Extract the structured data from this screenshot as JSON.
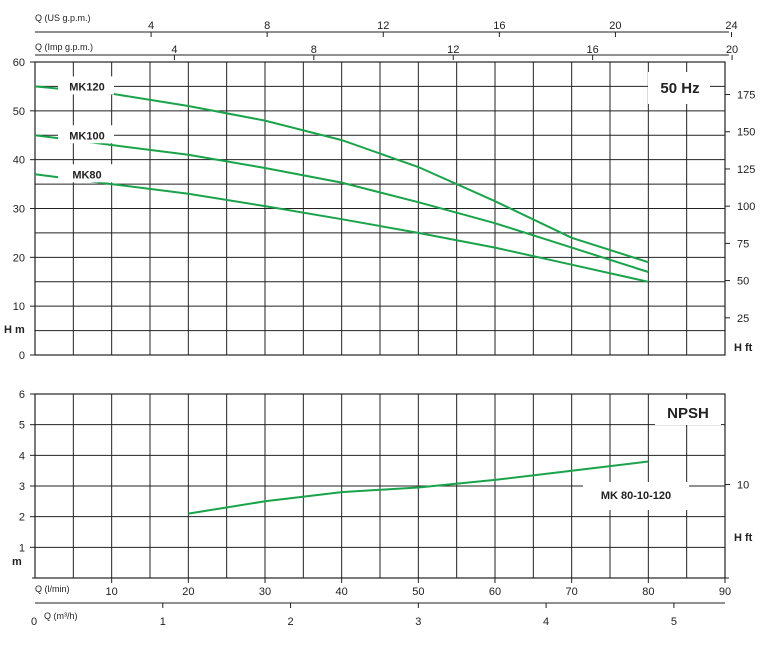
{
  "chart_data": [
    {
      "type": "line",
      "title": "50 Hz",
      "ylabel": "H m",
      "y2label": "H ft",
      "ylim": [
        0,
        60
      ],
      "y2ticks": [
        25,
        50,
        75,
        100,
        125,
        150,
        175
      ],
      "yticks": [
        0,
        10,
        20,
        30,
        40,
        50,
        60
      ],
      "top_axis_us_label": "Q (US g.p.m.)",
      "top_axis_us_ticks": [
        4,
        8,
        12,
        16,
        20,
        24
      ],
      "top_axis_imp_label": "Q (Imp g.p.m.)",
      "top_axis_imp_ticks": [
        4,
        8,
        12,
        16,
        20
      ],
      "series": [
        {
          "name": "MK120",
          "x": [
            0,
            10,
            20,
            30,
            40,
            50,
            60,
            70,
            80
          ],
          "y": [
            55,
            53.5,
            51,
            48,
            44,
            38.5,
            31.5,
            24,
            19
          ]
        },
        {
          "name": "MK100",
          "x": [
            0,
            10,
            20,
            30,
            40,
            50,
            60,
            70,
            80
          ],
          "y": [
            45,
            43,
            41,
            38.3,
            35.3,
            31.3,
            27,
            22,
            17
          ]
        },
        {
          "name": "MK80",
          "x": [
            0,
            10,
            20,
            30,
            40,
            50,
            60,
            70,
            80
          ],
          "y": [
            37,
            35,
            33,
            30.5,
            27.8,
            25,
            22,
            18.5,
            15
          ]
        }
      ]
    },
    {
      "type": "line",
      "title": "NPSH",
      "ylabel": "m",
      "y2label": "H ft",
      "ylim": [
        0,
        6
      ],
      "yticks": [
        1,
        2,
        3,
        4,
        5,
        6
      ],
      "y2ticks": [
        10
      ],
      "xlabel": "Q (l/min)",
      "xlim": [
        0,
        90
      ],
      "xticks": [
        10,
        20,
        30,
        40,
        50,
        60,
        70,
        80,
        90
      ],
      "x2label": "Q (m³/h)",
      "x2ticks": [
        1,
        2,
        3,
        4,
        5
      ],
      "series": [
        {
          "name": "MK 80-10-120",
          "x": [
            20,
            30,
            40,
            50,
            60,
            70,
            80
          ],
          "y": [
            2.1,
            2.5,
            2.8,
            2.95,
            3.2,
            3.5,
            3.8
          ]
        }
      ]
    }
  ],
  "x_origin_label": "0"
}
